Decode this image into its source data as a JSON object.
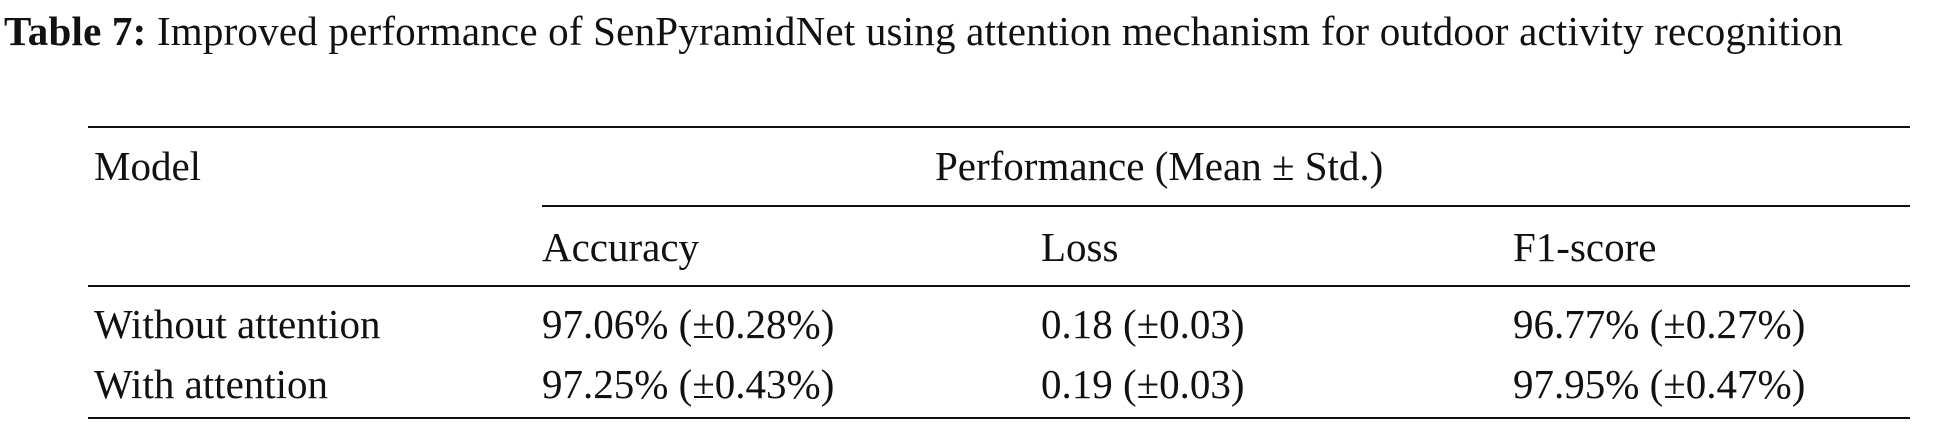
{
  "caption": {
    "label": "Table 7:",
    "text": "Improved performance of SenPyramidNet using attention mechanism for outdoor activity recognition"
  },
  "table": {
    "model_header": "Model",
    "group_header": "Performance (Mean ± Std.)",
    "metric_headers": [
      "Accuracy",
      "Loss",
      "F1-score"
    ],
    "rows": [
      {
        "model": "Without attention",
        "accuracy": "97.06% (±0.28%)",
        "loss": "0.18 (±0.03)",
        "f1": "96.77% (±0.27%)"
      },
      {
        "model": "With attention",
        "accuracy": "97.25% (±0.43%)",
        "loss": "0.19 (±0.03)",
        "f1": "97.95% (±0.47%)"
      }
    ]
  }
}
